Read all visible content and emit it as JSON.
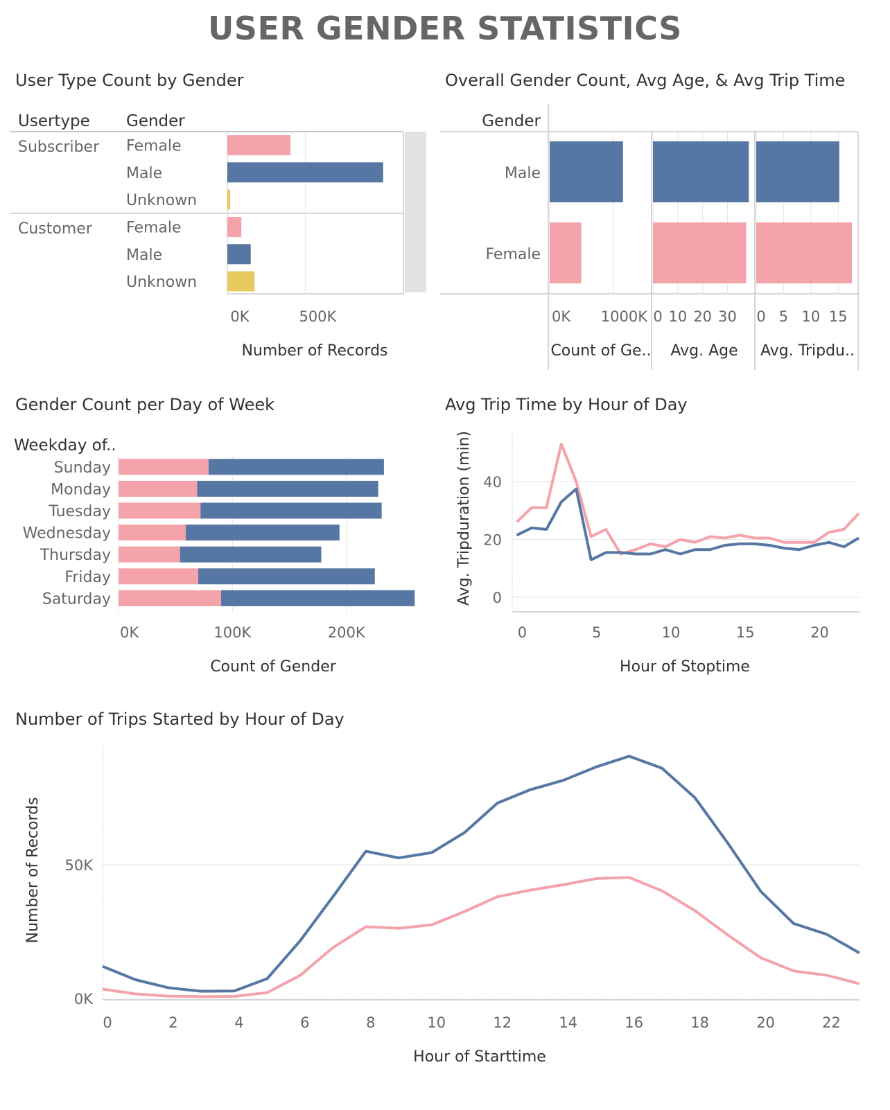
{
  "page": {
    "title": "USER GENDER STATISTICS"
  },
  "colors": {
    "female": "#f4a3aa",
    "male": "#5677a4",
    "unknown": "#e8c95e",
    "grid": "#e6e6e6",
    "axis": "#c8c8c8",
    "text_dark": "#333333",
    "text_light": "#666666"
  },
  "chart_data": [
    {
      "id": "usertype",
      "type": "bar",
      "title": "User Type Count by Gender",
      "row_headers": [
        "Usertype",
        "Gender"
      ],
      "groups": [
        {
          "name": "Subscriber",
          "items": [
            {
              "gender": "Female",
              "value": 405000,
              "color_key": "female"
            },
            {
              "gender": "Male",
              "value": 1000000,
              "color_key": "male"
            },
            {
              "gender": "Unknown",
              "value": 18000,
              "color_key": "unknown"
            }
          ]
        },
        {
          "name": "Customer",
          "items": [
            {
              "gender": "Female",
              "value": 90000,
              "color_key": "female"
            },
            {
              "gender": "Male",
              "value": 150000,
              "color_key": "male"
            },
            {
              "gender": "Unknown",
              "value": 175000,
              "color_key": "unknown"
            }
          ]
        }
      ],
      "xlabel": "Number of Records",
      "xticks": [
        {
          "value": 0,
          "label": "0K"
        },
        {
          "value": 500000,
          "label": "500K"
        }
      ],
      "xlim": [
        0,
        1130000
      ]
    },
    {
      "id": "overall",
      "type": "bar",
      "title": "Overall Gender Count, Avg Age, & Avg Trip Time",
      "row_header": "Gender",
      "genders": [
        "Male",
        "Female"
      ],
      "measures": [
        {
          "label": "Count of  Ge..",
          "values": [
            1150000,
            496000
          ],
          "xlim": [
            0,
            1500000
          ],
          "ticks": [
            {
              "value": 0,
              "label": "0K"
            },
            {
              "value": 1000000,
              "label": "1000K"
            }
          ]
        },
        {
          "label": "Avg. Age",
          "values": [
            38.6,
            37.5
          ],
          "xlim": [
            0,
            38.5
          ],
          "ticks": [
            {
              "value": 0,
              "label": "0"
            },
            {
              "value": 10,
              "label": "10"
            },
            {
              "value": 20,
              "label": "20"
            },
            {
              "value": 30,
              "label": "30"
            }
          ]
        },
        {
          "label": "Avg. Tripdu..",
          "values": [
            15.2,
            17.5
          ],
          "xlim": [
            0,
            17.5
          ],
          "ticks": [
            {
              "value": 0,
              "label": "0"
            },
            {
              "value": 5,
              "label": "5"
            },
            {
              "value": 10,
              "label": "10"
            },
            {
              "value": 15,
              "label": "15"
            }
          ]
        }
      ]
    },
    {
      "id": "weekday",
      "type": "bar",
      "title": "Gender Count per Day of Week",
      "row_header": "Weekday of..",
      "categories": [
        "Sunday",
        "Monday",
        "Tuesday",
        "Wednesday",
        "Thursday",
        "Friday",
        "Saturday"
      ],
      "series": [
        {
          "name": "Female",
          "color_key": "female",
          "values": [
            79000,
            69000,
            72000,
            59000,
            54000,
            70000,
            90000
          ]
        },
        {
          "name": "Male",
          "color_key": "male",
          "values": [
            154000,
            159000,
            159000,
            135000,
            124000,
            155000,
            170000
          ]
        }
      ],
      "xlabel": "Count of  Gender",
      "xticks": [
        {
          "value": 0,
          "label": "0K"
        },
        {
          "value": 100000,
          "label": "100K"
        },
        {
          "value": 200000,
          "label": "200K"
        }
      ],
      "xlim": [
        0,
        272000
      ]
    },
    {
      "id": "avgtrip",
      "type": "line",
      "title": "Avg Trip Time by Hour of Day",
      "xlabel": "Hour of Stoptime",
      "ylabel": "Avg. Tripduration (min)",
      "x": [
        0,
        1,
        2,
        3,
        4,
        5,
        6,
        7,
        8,
        9,
        10,
        11,
        12,
        13,
        14,
        15,
        16,
        17,
        18,
        19,
        20,
        21,
        22,
        23
      ],
      "series": [
        {
          "name": "Female",
          "color_key": "female",
          "values": [
            26,
            31,
            31,
            53,
            40,
            21,
            23.5,
            15,
            16.5,
            18.5,
            17.5,
            20,
            19,
            21,
            20.5,
            21.5,
            20.5,
            20.5,
            19,
            19,
            19,
            22.5,
            23.5,
            29
          ]
        },
        {
          "name": "Male",
          "color_key": "male",
          "values": [
            21.5,
            24,
            23.5,
            33,
            37.5,
            13,
            15.5,
            15.5,
            15,
            15,
            16.5,
            15,
            16.5,
            16.5,
            18,
            18.5,
            18.5,
            18,
            17,
            16.5,
            18,
            19,
            17.5,
            20.5
          ]
        }
      ],
      "xticks": [
        {
          "value": 0,
          "label": "0"
        },
        {
          "value": 5,
          "label": "5"
        },
        {
          "value": 10,
          "label": "10"
        },
        {
          "value": 15,
          "label": "15"
        },
        {
          "value": 20,
          "label": "20"
        }
      ],
      "yticks": [
        {
          "value": 0,
          "label": "0"
        },
        {
          "value": 20,
          "label": "20"
        },
        {
          "value": 40,
          "label": "40"
        }
      ],
      "xlim": [
        -0.3,
        23.05
      ],
      "ylim": [
        -5,
        58
      ]
    },
    {
      "id": "trips",
      "type": "line",
      "title": "Number of Trips Started by Hour of Day",
      "xlabel": "Hour of Starttime",
      "ylabel": "Number of Records",
      "x": [
        0,
        1,
        2,
        3,
        4,
        5,
        6,
        7,
        8,
        9,
        10,
        11,
        12,
        13,
        14,
        15,
        16,
        17,
        18,
        19,
        20,
        21,
        22,
        23
      ],
      "series": [
        {
          "name": "Female",
          "color_key": "female",
          "values": [
            3500,
            1700,
            900,
            700,
            800,
            2200,
            8600,
            19000,
            26800,
            26200,
            27500,
            32500,
            38000,
            40500,
            42500,
            44800,
            45200,
            40200,
            32800,
            23700,
            15200,
            10300,
            8700,
            5500
          ]
        },
        {
          "name": "Male",
          "color_key": "male",
          "values": [
            12000,
            7000,
            4000,
            2700,
            2800,
            7400,
            21500,
            38000,
            55000,
            52500,
            54500,
            62000,
            73000,
            78000,
            81500,
            86500,
            90500,
            86000,
            75000,
            58000,
            40000,
            28000,
            24000,
            17000
          ]
        }
      ],
      "xticks": [
        {
          "value": 0,
          "label": "0"
        },
        {
          "value": 2,
          "label": "2"
        },
        {
          "value": 4,
          "label": "4"
        },
        {
          "value": 6,
          "label": "6"
        },
        {
          "value": 8,
          "label": "8"
        },
        {
          "value": 10,
          "label": "10"
        },
        {
          "value": 12,
          "label": "12"
        },
        {
          "value": 14,
          "label": "14"
        },
        {
          "value": 16,
          "label": "16"
        },
        {
          "value": 18,
          "label": "18"
        },
        {
          "value": 20,
          "label": "20"
        },
        {
          "value": 22,
          "label": "22"
        }
      ],
      "yticks": [
        {
          "value": 0,
          "label": "0K"
        },
        {
          "value": 50000,
          "label": "50K"
        }
      ],
      "xlim": [
        0,
        23
      ],
      "ylim": [
        -500,
        95000
      ]
    }
  ]
}
